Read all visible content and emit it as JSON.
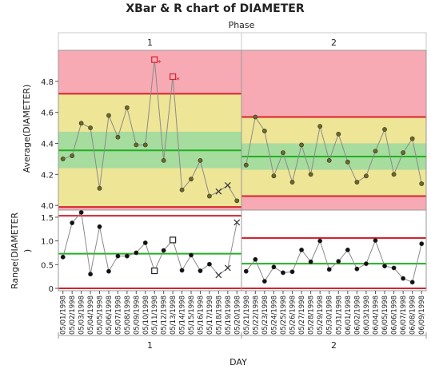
{
  "chart_data": {
    "type": "line",
    "title": "XBar & R chart of DIAMETER",
    "phase_label": "Phase",
    "phases": [
      "1",
      "2"
    ],
    "xlabel": "DAY",
    "dates_phase1": [
      "05/01/1998",
      "05/02/1998",
      "05/03/1998",
      "05/04/1998",
      "05/05/1998",
      "05/06/1998",
      "05/07/1998",
      "05/08/1998",
      "05/09/1998",
      "05/10/1998",
      "05/11/1998",
      "05/12/1998",
      "05/13/1998",
      "05/14/1998",
      "05/15/1998",
      "05/16/1998",
      "05/17/1998",
      "05/18/1998",
      "05/19/1998",
      "05/20/1998"
    ],
    "dates_phase2": [
      "05/21/1998",
      "05/22/1998",
      "05/23/1998",
      "05/24/1998",
      "05/25/1998",
      "05/26/1998",
      "05/27/1998",
      "05/28/1998",
      "05/29/1998",
      "05/30/1998",
      "05/31/1998",
      "06/01/1998",
      "06/02/1998",
      "06/03/1998",
      "06/04/1998",
      "06/05/1998",
      "06/06/1998",
      "06/07/1998",
      "06/08/1998",
      "06/09/1998"
    ],
    "xbar": {
      "ylabel": "Average(DIAMETER)",
      "ylim": [
        3.97,
        5.0
      ],
      "yticks": [
        "4.0",
        "4.2",
        "4.4",
        "4.6",
        "4.8"
      ],
      "phase1": {
        "center": 4.355,
        "ucl": 4.72,
        "lcl": 3.99,
        "zone_a_upper": 4.72,
        "zone_b_upper": 4.475,
        "zone_b_lower": 4.24,
        "values": [
          4.3,
          4.32,
          4.53,
          4.5,
          4.11,
          4.58,
          4.44,
          4.63,
          4.39,
          4.39,
          4.94,
          4.29,
          4.83,
          4.1,
          4.17,
          4.29,
          4.06,
          4.09,
          4.13,
          4.03
        ]
      },
      "phase2": {
        "center": 4.315,
        "ucl": 4.57,
        "lcl": 4.06,
        "zone_b_upper": 4.4,
        "zone_b_lower": 4.23,
        "values": [
          4.26,
          4.57,
          4.48,
          4.19,
          4.34,
          4.15,
          4.39,
          4.2,
          4.51,
          4.29,
          4.46,
          4.28,
          4.15,
          4.19,
          4.35,
          4.49,
          4.2,
          4.34,
          4.43,
          4.14
        ]
      }
    },
    "range": {
      "ylabel": "Range(DIAMETER)",
      "ylim": [
        -0.05,
        1.65
      ],
      "yticks": [
        "0",
        "0.5",
        "1.0",
        "1.5"
      ],
      "phase1": {
        "center": 0.73,
        "ucl": 1.53,
        "lcl": 0,
        "values": [
          0.66,
          1.38,
          1.6,
          0.3,
          1.3,
          0.36,
          0.68,
          0.68,
          0.75,
          0.96,
          0.37,
          0.8,
          1.02,
          0.38,
          0.7,
          0.37,
          0.51,
          0.28,
          0.43,
          1.39
        ]
      },
      "phase2": {
        "center": 0.52,
        "ucl": 1.06,
        "lcl": 0,
        "values": [
          0.36,
          0.61,
          0.15,
          0.45,
          0.33,
          0.35,
          0.81,
          0.56,
          1.0,
          0.4,
          0.57,
          0.81,
          0.41,
          0.52,
          1.01,
          0.47,
          0.43,
          0.21,
          0.13,
          0.94
        ]
      }
    },
    "special_markers": {
      "xbar_square": [
        10,
        12
      ],
      "xbar_x": [
        17,
        18
      ],
      "range_square": [
        10,
        12
      ],
      "range_x": [
        17,
        18,
        19
      ]
    },
    "colors": {
      "red_zone": "#f7aab3",
      "yellow_zone": "#eee597",
      "green_zone": "#a6dc9e",
      "limit_line": "#d6232f",
      "center_line": "#21b021",
      "point": "#6b6a1f"
    }
  }
}
